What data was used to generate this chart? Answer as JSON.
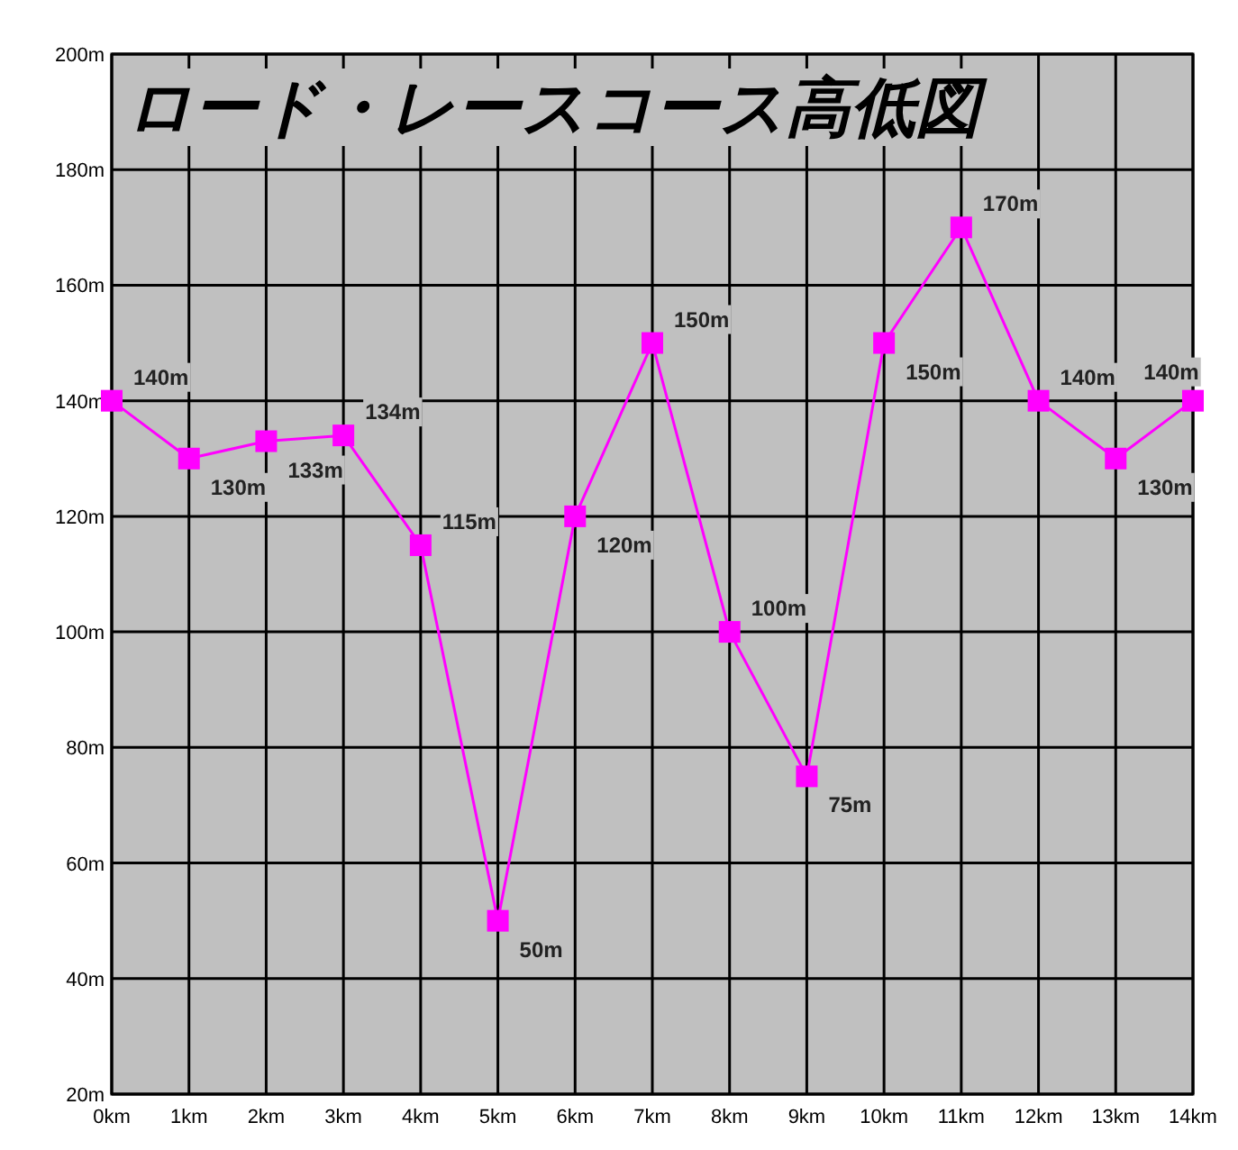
{
  "chart_data": {
    "type": "line",
    "title": "ロード・レースコース高低図",
    "categories": [
      "0km",
      "1km",
      "2km",
      "3km",
      "4km",
      "5km",
      "6km",
      "7km",
      "8km",
      "9km",
      "10km",
      "11km",
      "12km",
      "13km",
      "14km"
    ],
    "series": [
      {
        "color": "#ff00ff",
        "values": [
          140,
          130,
          133,
          134,
          115,
          50,
          120,
          150,
          100,
          75,
          150,
          170,
          140,
          130,
          140
        ],
        "value_labels": [
          "140m",
          "130m",
          "133m",
          "134m",
          "115m",
          "50m",
          "120m",
          "150m",
          "100m",
          "75m",
          "150m",
          "170m",
          "140m",
          "130m",
          "140m"
        ]
      }
    ],
    "ylim": [
      20,
      200
    ],
    "yticks": [
      {
        "value": 20,
        "label": "20m"
      },
      {
        "value": 40,
        "label": "40m"
      },
      {
        "value": 60,
        "label": "60m"
      },
      {
        "value": 80,
        "label": "80m"
      },
      {
        "value": 100,
        "label": "100m"
      },
      {
        "value": 120,
        "label": "120m"
      },
      {
        "value": 140,
        "label": "140m"
      },
      {
        "value": 160,
        "label": "160m"
      },
      {
        "value": 180,
        "label": "180m"
      },
      {
        "value": 200,
        "label": "200m"
      }
    ],
    "grid": true,
    "marker": "square",
    "line_style": "solid"
  }
}
